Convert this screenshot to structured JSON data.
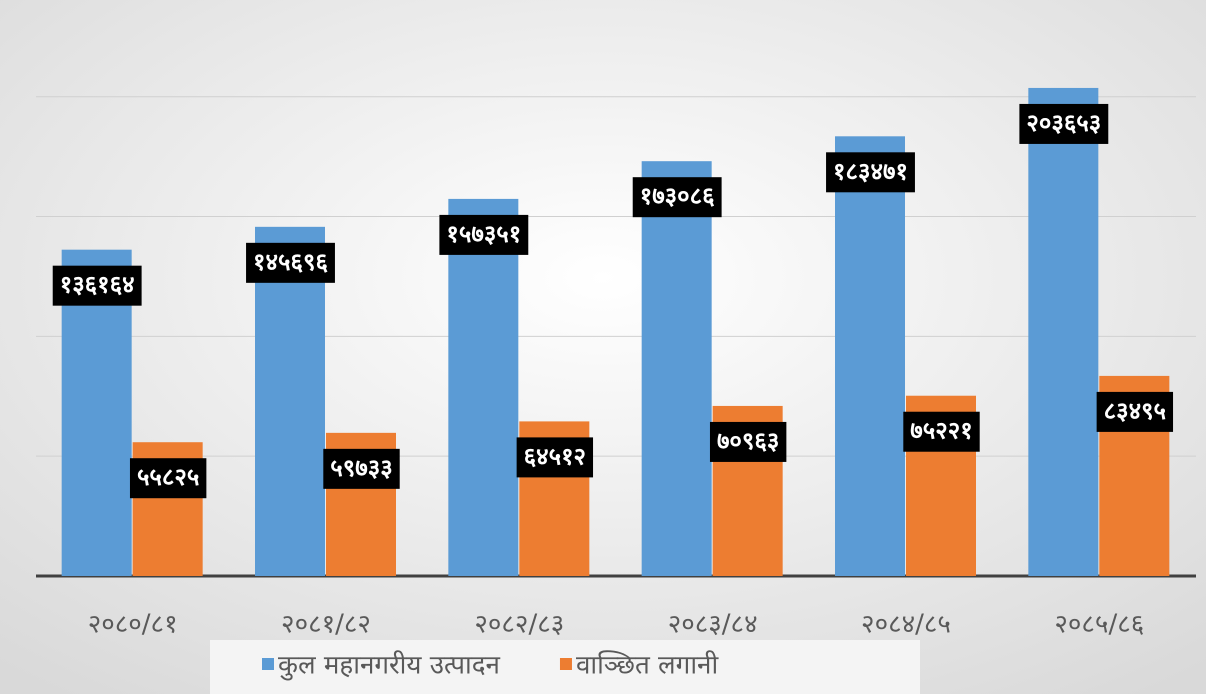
{
  "chart_data": {
    "type": "bar",
    "categories": [
      "२०८०/८१",
      "२०८१/८२",
      "२०८२/८३",
      "२०८३/८४",
      "२०८४/८५",
      "२०८५/८६"
    ],
    "series": [
      {
        "name": "कुल महानगरीय उत्पादन",
        "color": "#5b9bd5",
        "values": [
          136164,
          145696,
          157351,
          173086,
          183471,
          203653
        ],
        "value_labels": [
          "१३६१६४",
          "१४५६९६",
          "१५७३५१",
          "१७३०८६",
          "१८३४७१",
          "२०३६५३"
        ]
      },
      {
        "name": "वाञ्छित लगानी",
        "color": "#ed7d31",
        "values": [
          55825,
          59733,
          64512,
          70963,
          75221,
          83495
        ],
        "value_labels": [
          "५५८२५",
          "५९७३३",
          "६४५१२",
          "७०९६३",
          "७५२२१",
          "८३४९५"
        ]
      }
    ],
    "ylim": [
      0,
      232000
    ],
    "yticks": [
      0,
      50000,
      100000,
      150000,
      200000
    ],
    "grid": true,
    "legend": "bottom"
  }
}
